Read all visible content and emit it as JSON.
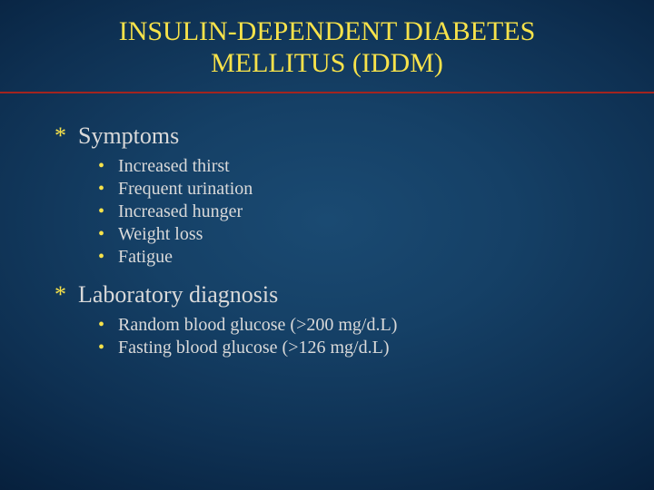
{
  "colors": {
    "title": "#f7e24a",
    "rule": "#a3241f",
    "body": "#d9d9d9",
    "bullet": "#f7e24a"
  },
  "title_line1": "INSULIN-DEPENDENT DIABETES",
  "title_line2": "MELLITUS (IDDM)",
  "sections": [
    {
      "heading": "Symptoms",
      "items": [
        "Increased thirst",
        "Frequent urination",
        "Increased hunger",
        "Weight loss",
        "Fatigue"
      ]
    },
    {
      "heading": "Laboratory diagnosis",
      "items": [
        "Random blood glucose (>200 mg/d.L)",
        "Fasting blood glucose (>126 mg/d.L)"
      ]
    }
  ],
  "markers": {
    "l1": "*",
    "l2": "•"
  }
}
